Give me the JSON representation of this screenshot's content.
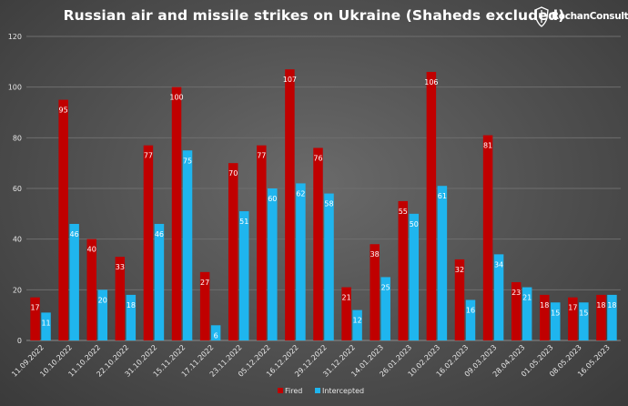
{
  "chart_data": {
    "type": "bar",
    "title": "Russian air and missile strikes on Ukraine (Shaheds excluded)",
    "categories": [
      "11.09.2022",
      "10.10.2022",
      "11.10.2022",
      "22.10.2022",
      "31.10.2022",
      "15.11.2022",
      "17.11.2022",
      "23.11.2022",
      "05.12.2022",
      "16.12.2022",
      "29.12.2022",
      "31.12.2022",
      "14.01.2023",
      "26.01.2023",
      "10.02.2023",
      "16.02.2023",
      "09.03.2023",
      "28.04.2023",
      "01.05.2023",
      "08.05.2023",
      "16.05.2023"
    ],
    "series": [
      {
        "name": "Fired",
        "color": "#c00000",
        "values": [
          17,
          95,
          40,
          33,
          77,
          100,
          27,
          70,
          77,
          107,
          76,
          21,
          38,
          55,
          106,
          32,
          81,
          23,
          18,
          17,
          18
        ]
      },
      {
        "name": "Intercepted",
        "color": "#1fb5ee",
        "values": [
          11,
          46,
          20,
          18,
          46,
          75,
          6,
          51,
          60,
          62,
          58,
          12,
          25,
          50,
          61,
          16,
          34,
          21,
          15,
          15,
          18
        ]
      }
    ],
    "ylim": [
      0,
      120
    ],
    "yticks": [
      0,
      20,
      40,
      60,
      80,
      100,
      120
    ],
    "grid": true,
    "legend": "bottom-center"
  },
  "brand": {
    "name": "RochanConsulting",
    "icon": "sword-shield-icon"
  },
  "colors": {
    "background": "#4f4f4f",
    "grid": "#6e6e6e"
  }
}
